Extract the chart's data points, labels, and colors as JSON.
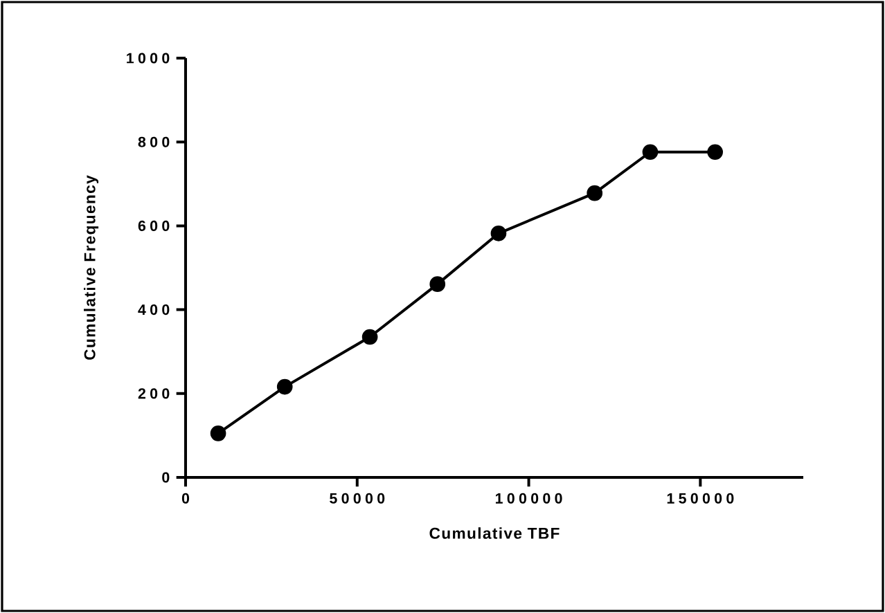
{
  "chart_data": {
    "type": "line",
    "xlabel": "Cumulative TBF",
    "ylabel": "Cumulative Frequency",
    "x": [
      9500,
      28900,
      53700,
      73400,
      91200,
      119200,
      135400,
      154300
    ],
    "values": [
      105,
      216,
      335,
      461,
      582,
      678,
      776,
      776
    ],
    "color": "#000000",
    "marker": "circle",
    "line_style": "solid",
    "xlim": [
      0,
      180000
    ],
    "ylim": [
      0,
      1000
    ],
    "xticks": [
      0,
      50000,
      100000,
      150000
    ],
    "yticks": [
      0,
      200,
      400,
      600,
      800,
      1000
    ]
  }
}
